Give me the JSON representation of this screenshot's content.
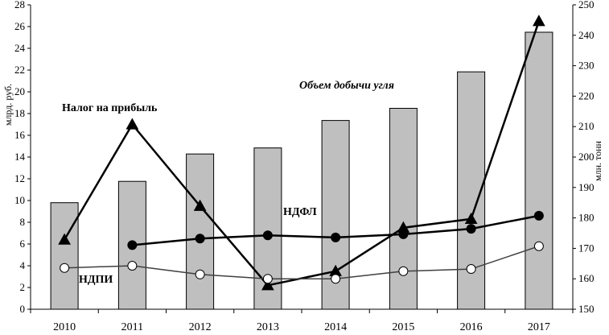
{
  "chart_data": {
    "type": "bar",
    "categories": [
      "2010",
      "2011",
      "2012",
      "2013",
      "2014",
      "2015",
      "2016",
      "2017"
    ],
    "title": "",
    "ylabel": "млрд. руб.",
    "y2label": "млн. тонн",
    "ylim": [
      0,
      28
    ],
    "y2lim": [
      150,
      250
    ],
    "yticks": [
      0,
      2,
      4,
      6,
      8,
      10,
      12,
      14,
      16,
      18,
      20,
      22,
      24,
      26,
      28
    ],
    "y2ticks": [
      150,
      160,
      170,
      180,
      190,
      200,
      210,
      220,
      230,
      240,
      250
    ],
    "grid": false,
    "colors": {
      "bars": "#bfbfbf",
      "lines": "#000000",
      "ndpi_line": "#404040"
    },
    "series": [
      {
        "name": "Объем добычи угля",
        "kind": "bar",
        "axis": "right",
        "values": [
          185,
          192,
          201,
          203,
          212,
          216,
          228,
          241
        ]
      },
      {
        "name": "Налог на прибыль",
        "kind": "line",
        "marker": "triangle",
        "axis": "left",
        "values": [
          6.4,
          17.0,
          9.5,
          2.2,
          3.5,
          7.5,
          8.3,
          26.5
        ]
      },
      {
        "name": "НДФЛ",
        "kind": "line",
        "marker": "filled-circle",
        "axis": "left",
        "values": [
          null,
          5.9,
          6.5,
          6.8,
          6.6,
          6.9,
          7.4,
          8.6
        ]
      },
      {
        "name": "НДПИ",
        "kind": "line",
        "marker": "open-circle",
        "axis": "left",
        "values": [
          3.8,
          4.0,
          3.2,
          2.8,
          2.8,
          3.5,
          3.7,
          5.8
        ]
      }
    ],
    "annotations": [
      {
        "text": "Налог на прибыль",
        "series": "Налог на прибыль"
      },
      {
        "text": "Объем добычи угля",
        "series": "Объем добычи угля"
      },
      {
        "text": "НДФЛ",
        "series": "НДФЛ"
      },
      {
        "text": "НДПИ",
        "series": "НДПИ"
      }
    ]
  }
}
